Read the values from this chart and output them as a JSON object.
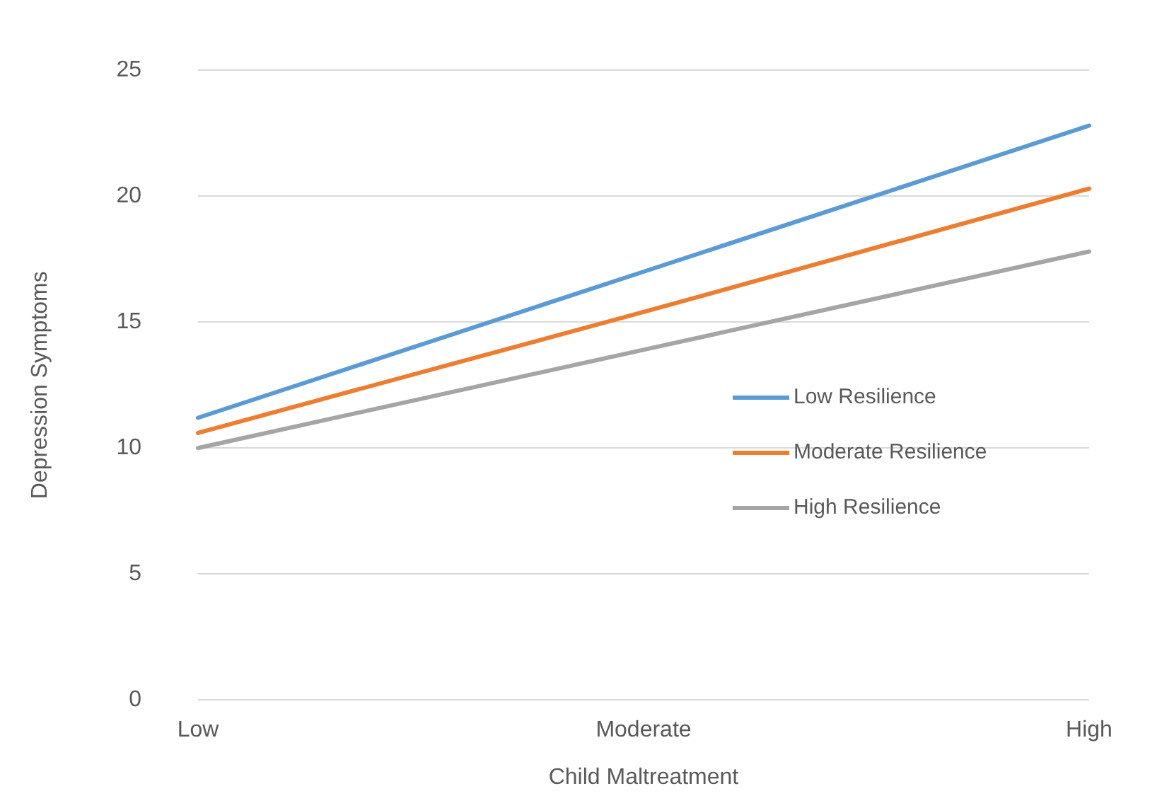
{
  "chart_data": {
    "type": "line",
    "xlabel": "Child Maltreatment",
    "ylabel": "Depression Symptoms",
    "categories": [
      "Low",
      "Moderate",
      "High"
    ],
    "series": [
      {
        "name": "Low Resilience",
        "color": "#5b9bd5",
        "values": [
          11.2,
          17.0,
          22.8
        ]
      },
      {
        "name": "Moderate Resilience",
        "color": "#ed7d31",
        "values": [
          10.6,
          15.4,
          20.3
        ]
      },
      {
        "name": "High Resilience",
        "color": "#a5a5a5",
        "values": [
          10.0,
          13.9,
          17.8
        ]
      }
    ],
    "ylim": [
      0,
      25
    ],
    "yticks": [
      0,
      5,
      10,
      15,
      20,
      25
    ],
    "grid": "y",
    "legend": "bottom right",
    "marker": "none",
    "line_style": "solid"
  }
}
